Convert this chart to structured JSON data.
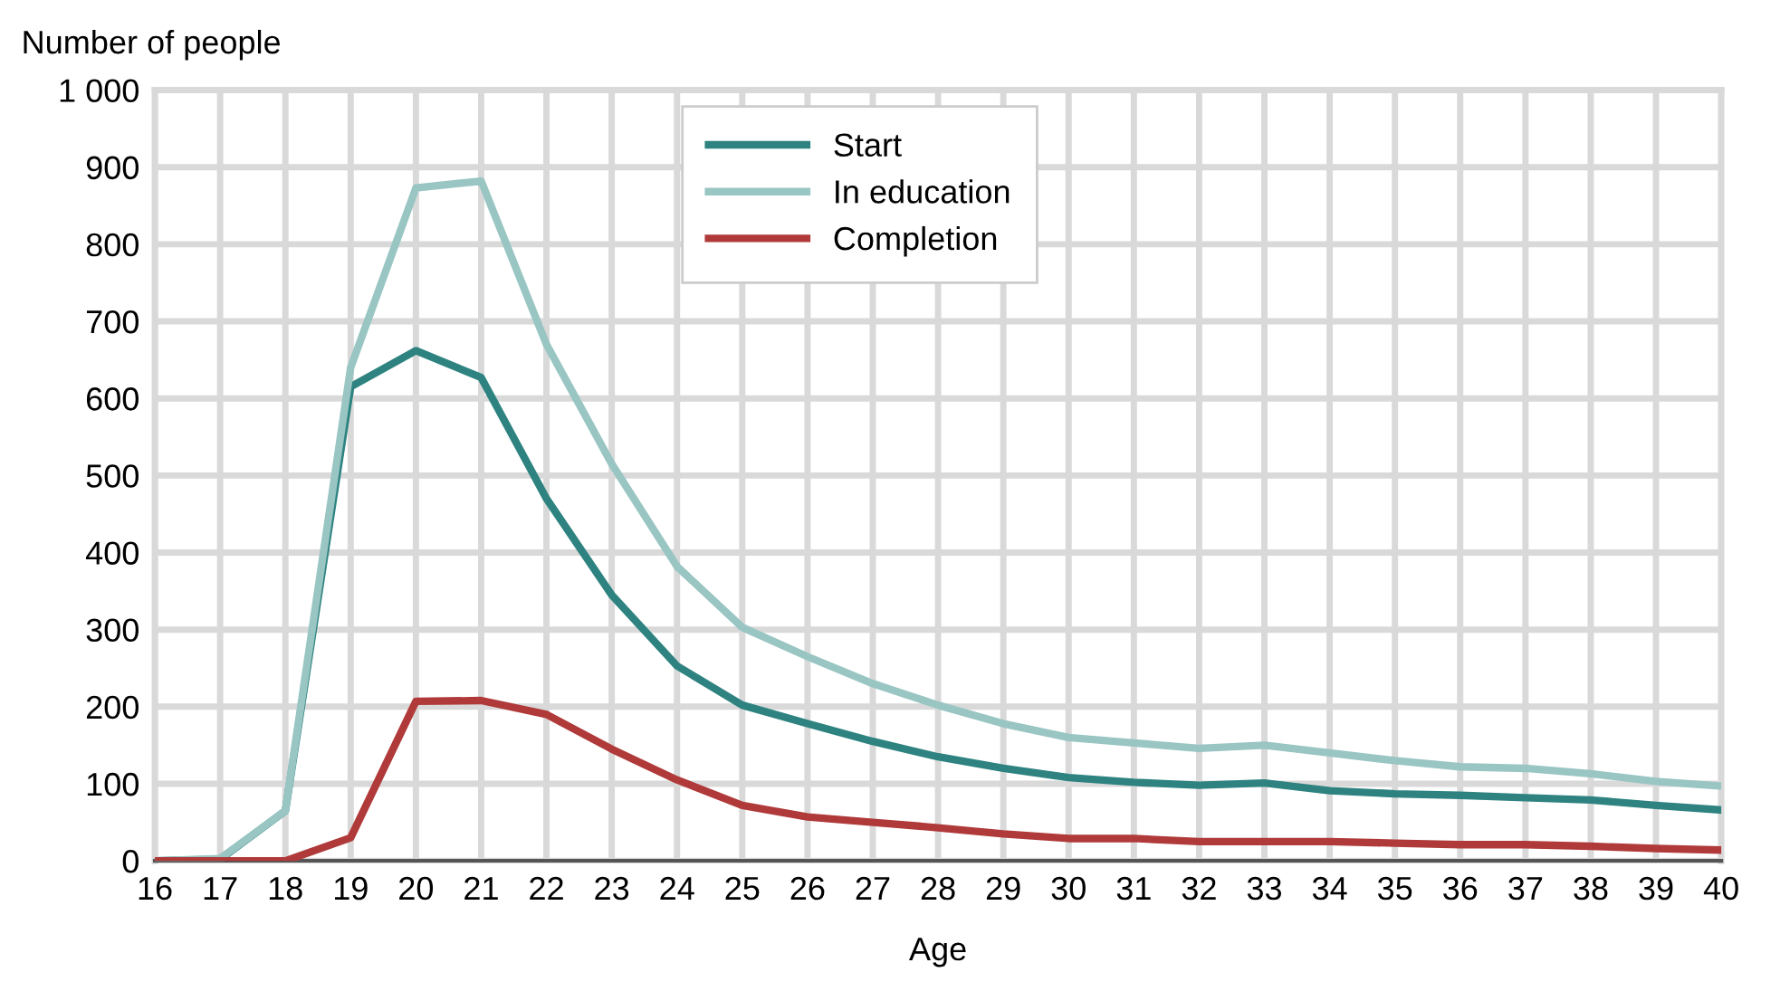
{
  "chart_data": {
    "type": "line",
    "ylabel": "Number of people",
    "xlabel": "Age",
    "x": [
      16,
      17,
      18,
      19,
      20,
      21,
      22,
      23,
      24,
      25,
      26,
      27,
      28,
      29,
      30,
      31,
      32,
      33,
      34,
      35,
      36,
      37,
      38,
      39,
      40
    ],
    "series": [
      {
        "name": "Start",
        "color": "#2e8380",
        "values": [
          0,
          2,
          65,
          615,
          662,
          627,
          470,
          345,
          253,
          202,
          178,
          155,
          135,
          120,
          108,
          102,
          98,
          101,
          91,
          87,
          85,
          82,
          79,
          72,
          66
        ]
      },
      {
        "name": "In education",
        "color": "#99c5c3",
        "values": [
          0,
          3,
          65,
          640,
          873,
          882,
          670,
          515,
          382,
          303,
          265,
          230,
          202,
          178,
          160,
          153,
          146,
          150,
          140,
          130,
          122,
          120,
          113,
          103,
          97
        ]
      },
      {
        "name": "Completion",
        "color": "#b03a3a",
        "values": [
          0,
          0,
          0,
          30,
          207,
          208,
          190,
          145,
          105,
          72,
          57,
          50,
          43,
          35,
          29,
          29,
          25,
          25,
          25,
          23,
          21,
          21,
          19,
          16,
          14
        ]
      }
    ],
    "xlim": [
      16,
      40
    ],
    "xticks": [
      16,
      17,
      18,
      19,
      20,
      21,
      22,
      23,
      24,
      25,
      26,
      27,
      28,
      29,
      30,
      31,
      32,
      33,
      34,
      35,
      36,
      37,
      38,
      39,
      40
    ],
    "ylim": [
      0,
      1000
    ],
    "yticks": [
      0,
      100,
      200,
      300,
      400,
      500,
      600,
      700,
      800,
      900,
      {
        "value": 1000,
        "label": "1 000"
      }
    ],
    "grid": true,
    "legend": "top",
    "marker": "none",
    "line_style": "solid"
  }
}
